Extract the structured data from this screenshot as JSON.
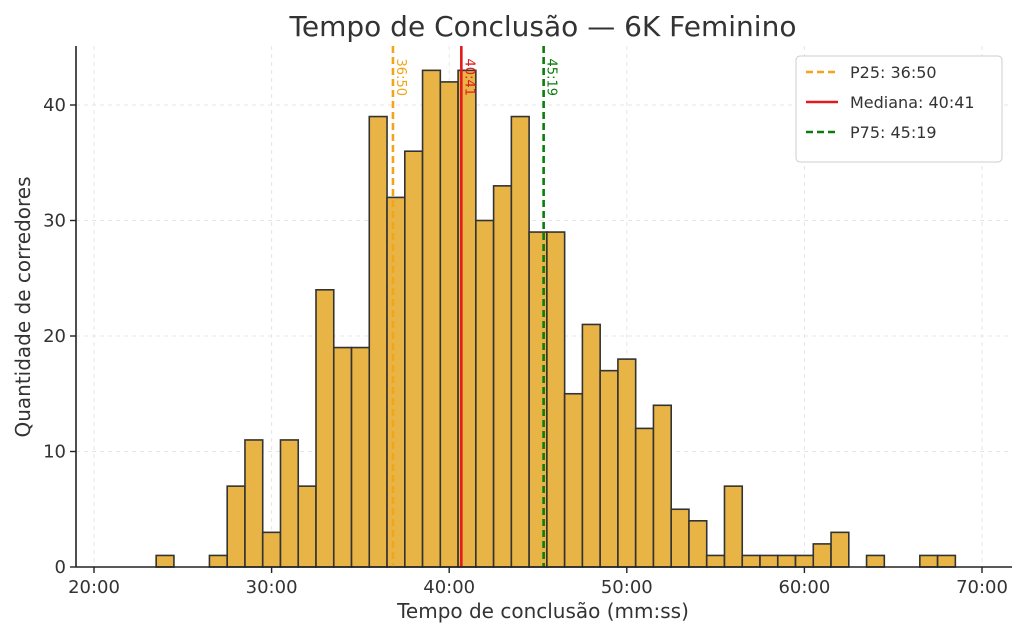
{
  "chart_data": {
    "type": "bar",
    "title": "Tempo de Conclusão — 6K Feminino",
    "xlabel": "Tempo de conclusão (mm:ss)",
    "ylabel": "Quantidade de corredores",
    "xlim": [
      19.5,
      70.5
    ],
    "ylim": [
      0,
      45.5
    ],
    "x_ticks": [
      {
        "value": 20,
        "label": "20:00"
      },
      {
        "value": 30,
        "label": "30:00"
      },
      {
        "value": 40,
        "label": "40:00"
      },
      {
        "value": 50,
        "label": "50:00"
      },
      {
        "value": 60,
        "label": "60:00"
      },
      {
        "value": 70,
        "label": "70:00"
      }
    ],
    "y_ticks": [
      0,
      10,
      20,
      30,
      40
    ],
    "grid": true,
    "bar_color": "#E8B445",
    "bar_edge": "#333333",
    "bin_width_minutes": 1.0,
    "bins": [
      {
        "start": 23.5,
        "count": 1
      },
      {
        "start": 26.5,
        "count": 1
      },
      {
        "start": 27.5,
        "count": 7
      },
      {
        "start": 28.5,
        "count": 11
      },
      {
        "start": 29.5,
        "count": 3
      },
      {
        "start": 30.5,
        "count": 11
      },
      {
        "start": 31.5,
        "count": 7
      },
      {
        "start": 32.5,
        "count": 24
      },
      {
        "start": 33.5,
        "count": 19
      },
      {
        "start": 34.5,
        "count": 19
      },
      {
        "start": 35.5,
        "count": 39
      },
      {
        "start": 36.5,
        "count": 32
      },
      {
        "start": 37.5,
        "count": 36
      },
      {
        "start": 38.5,
        "count": 43
      },
      {
        "start": 39.5,
        "count": 42
      },
      {
        "start": 40.5,
        "count": 43
      },
      {
        "start": 41.5,
        "count": 30
      },
      {
        "start": 42.5,
        "count": 33
      },
      {
        "start": 43.5,
        "count": 39
      },
      {
        "start": 44.5,
        "count": 29
      },
      {
        "start": 45.5,
        "count": 29
      },
      {
        "start": 46.5,
        "count": 15
      },
      {
        "start": 47.5,
        "count": 21
      },
      {
        "start": 48.5,
        "count": 17
      },
      {
        "start": 49.5,
        "count": 18
      },
      {
        "start": 50.5,
        "count": 12
      },
      {
        "start": 51.5,
        "count": 14
      },
      {
        "start": 52.5,
        "count": 5
      },
      {
        "start": 53.5,
        "count": 4
      },
      {
        "start": 54.5,
        "count": 1
      },
      {
        "start": 55.5,
        "count": 7
      },
      {
        "start": 56.5,
        "count": 1
      },
      {
        "start": 57.5,
        "count": 1
      },
      {
        "start": 58.5,
        "count": 1
      },
      {
        "start": 59.5,
        "count": 1
      },
      {
        "start": 60.5,
        "count": 2
      },
      {
        "start": 61.5,
        "count": 3
      },
      {
        "start": 63.5,
        "count": 1
      },
      {
        "start": 66.5,
        "count": 1
      },
      {
        "start": 67.5,
        "count": 1
      }
    ],
    "reference_lines": [
      {
        "name": "P25",
        "value_minutes": 36.833,
        "label": "36:50",
        "legend": "P25: 36:50",
        "color": "#F2A516",
        "style": "dashed"
      },
      {
        "name": "Mediana",
        "value_minutes": 40.683,
        "label": "40:41",
        "legend": "Mediana: 40:41",
        "color": "#E31A1C",
        "style": "solid"
      },
      {
        "name": "P75",
        "value_minutes": 45.317,
        "label": "45:19",
        "legend": "P75: 45:19",
        "color": "#0A7D0A",
        "style": "dashed"
      }
    ],
    "legend_position": "top-right"
  }
}
